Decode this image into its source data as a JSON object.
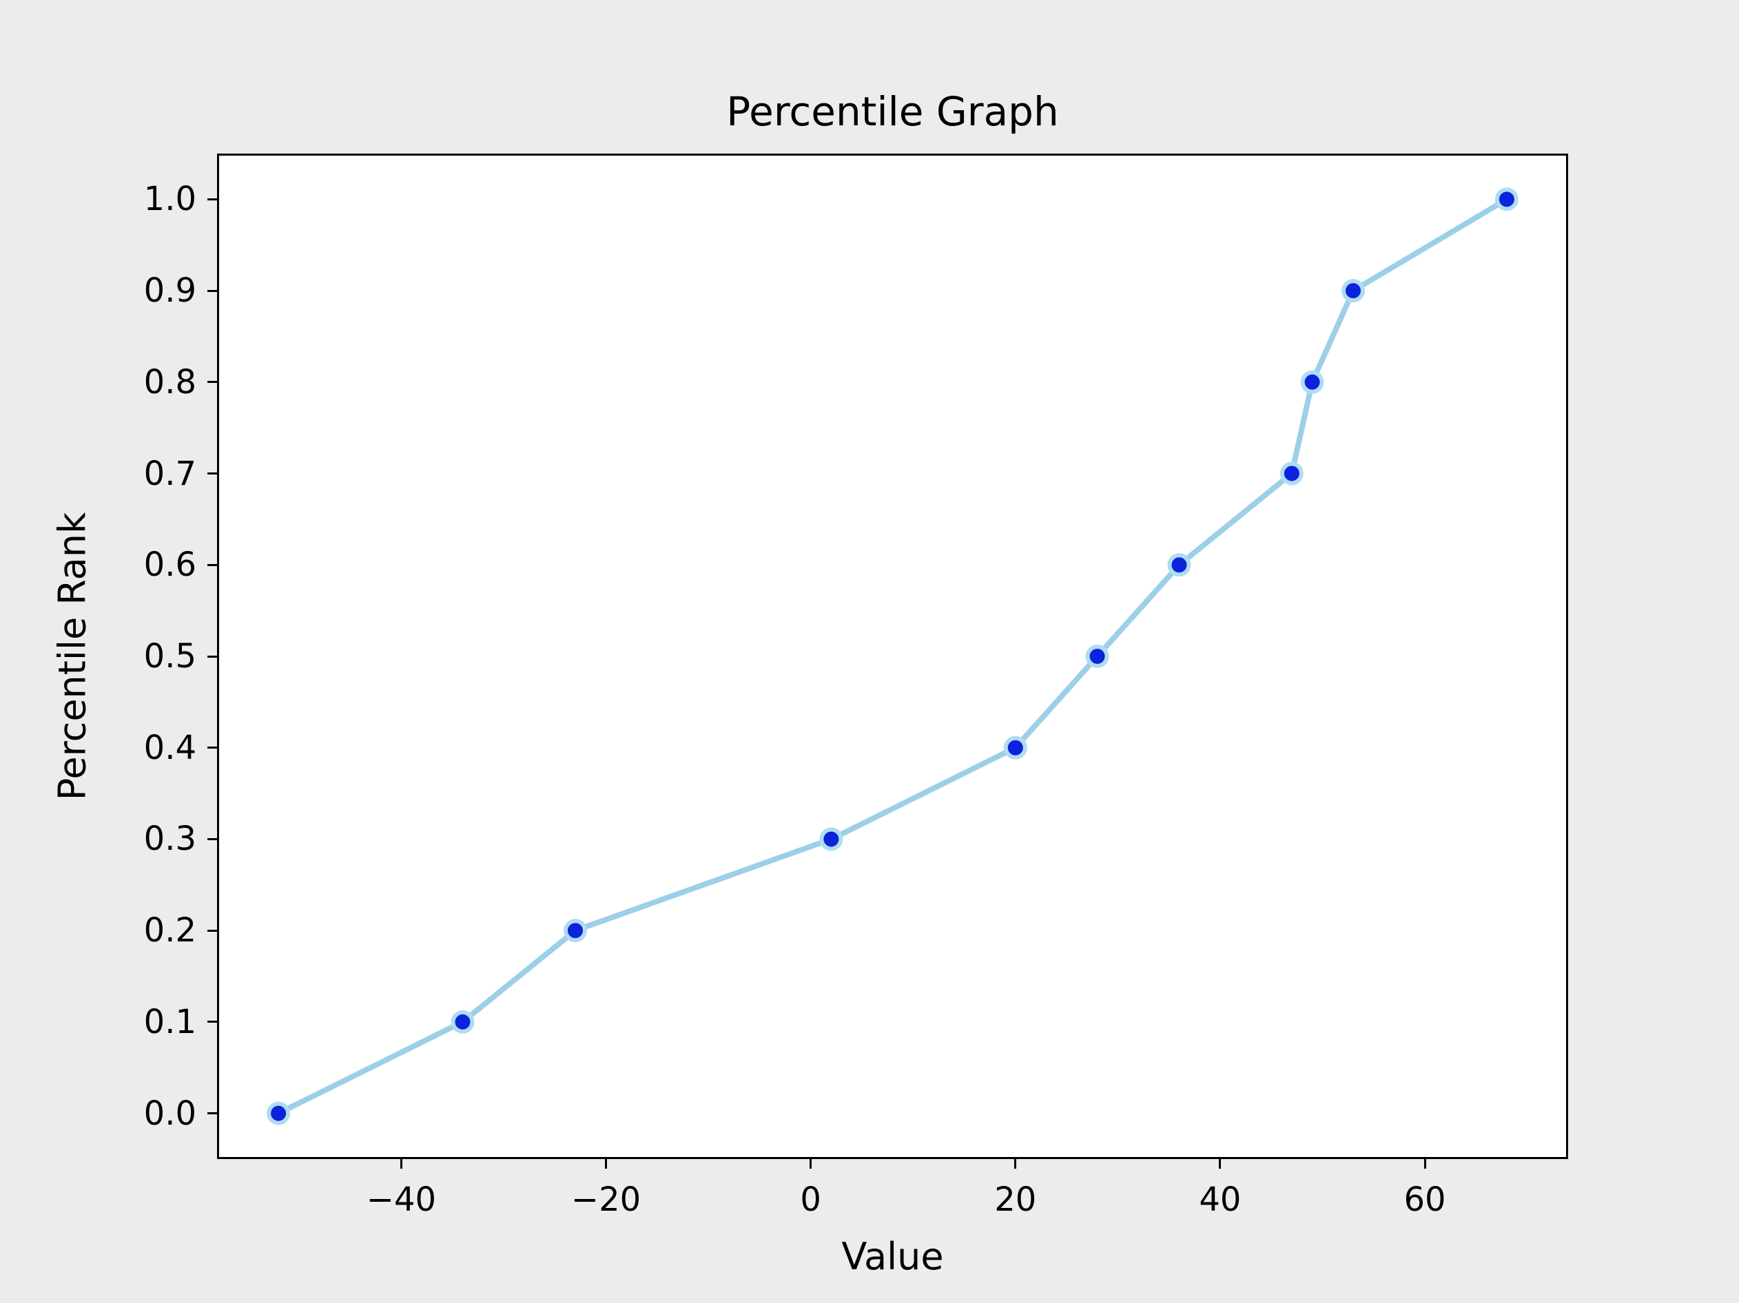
{
  "figure": {
    "background_color": "#ECECEC",
    "plot_background_color": "#FFFFFF",
    "spine_color": "#000000",
    "text_color": "#000000",
    "line_color": "#9CCFE8",
    "marker_color": "#0B23DA",
    "marker_edge_color": "#B0DCF2"
  },
  "chart_data": {
    "type": "line",
    "title": "Percentile Graph",
    "xlabel": "Value",
    "ylabel": "Percentile Rank",
    "x": [
      -52,
      -34,
      -23,
      2,
      20,
      28,
      36,
      47,
      49,
      53,
      68
    ],
    "y": [
      0.0,
      0.1,
      0.2,
      0.3,
      0.4,
      0.5,
      0.6,
      0.7,
      0.8,
      0.9,
      1.0
    ],
    "x_ticks": [
      -40,
      -20,
      0,
      20,
      40,
      60
    ],
    "y_ticks": [
      0.0,
      0.1,
      0.2,
      0.3,
      0.4,
      0.5,
      0.6,
      0.7,
      0.8,
      0.9,
      1.0
    ],
    "xlim": [
      -58,
      74
    ],
    "ylim": [
      -0.05,
      1.05
    ],
    "grid": false,
    "legend_position": "none",
    "marker_style": "circle",
    "line_width": 8,
    "marker_radius": 14
  }
}
